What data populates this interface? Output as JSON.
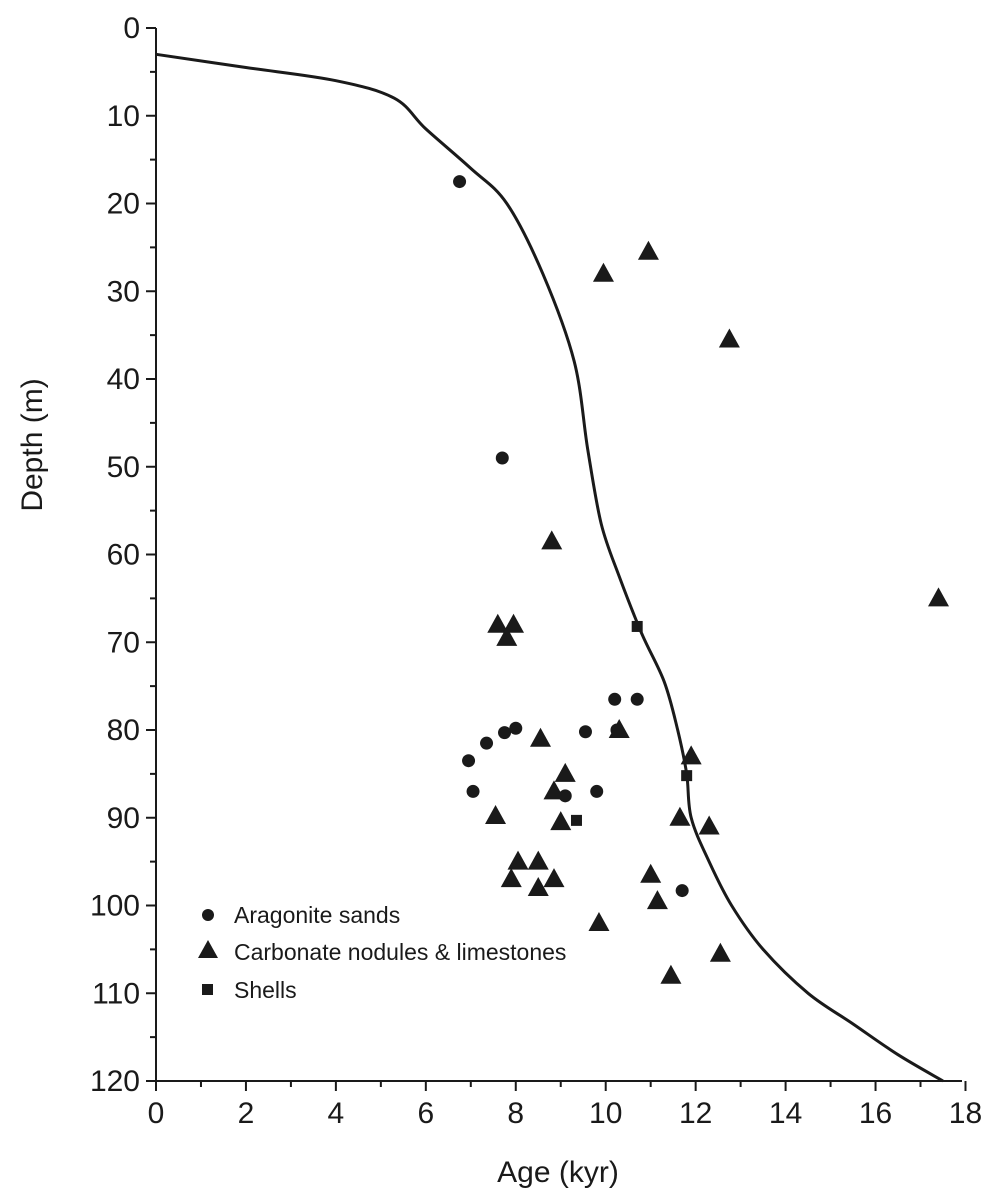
{
  "chart_data": {
    "type": "scatter",
    "title": "",
    "xlabel": "Age (kyr)",
    "ylabel": "Depth (m)",
    "xlim": [
      0,
      17.5
    ],
    "ylim": [
      0,
      120
    ],
    "y_inverted": true,
    "x_major_ticks": [
      0,
      2,
      4,
      6,
      8,
      10,
      12,
      14,
      16,
      18
    ],
    "x_tick_labels": [
      "0",
      "2",
      "4",
      "6",
      "8",
      "10",
      "12",
      "14",
      "16",
      "18"
    ],
    "x_minor_ticks": [
      1,
      3,
      5,
      7,
      9,
      11,
      13,
      15,
      17
    ],
    "y_major_ticks": [
      0,
      10,
      20,
      30,
      40,
      50,
      60,
      70,
      80,
      90,
      100,
      110,
      120
    ],
    "y_tick_labels": [
      "0",
      "10",
      "20",
      "30",
      "40",
      "50",
      "60",
      "70",
      "80",
      "90",
      "100",
      "110",
      "120"
    ],
    "y_minor_ticks": [
      5,
      15,
      25,
      35,
      45,
      55,
      65,
      75,
      85,
      95,
      105,
      115
    ],
    "grid": false,
    "legend_position": "bottom-left",
    "curve": {
      "x": [
        0,
        2,
        4,
        5.3,
        6,
        7,
        7.8,
        8.6,
        9.3,
        9.6,
        9.9,
        10.3,
        10.8,
        11.3,
        11.6,
        11.8,
        11.9,
        12.3,
        12.8,
        13.5,
        14.5,
        15.5,
        16.5,
        17.5
      ],
      "y": [
        3,
        4.5,
        6,
        8,
        11.5,
        16,
        20,
        28,
        38,
        48,
        56.5,
        62.5,
        69,
        74.5,
        80,
        85,
        90,
        95,
        100,
        105,
        110,
        113.5,
        117,
        120
      ]
    },
    "series": [
      {
        "name": "Aragonite sands",
        "marker": "circle",
        "x": [
          6.75,
          7.7,
          6.95,
          7.05,
          7.35,
          7.75,
          8.0,
          9.1,
          9.55,
          9.8,
          10.2,
          10.25,
          10.7,
          11.7
        ],
        "y": [
          17.5,
          49,
          83.5,
          87,
          81.5,
          80.3,
          79.8,
          87.5,
          80.2,
          87,
          76.5,
          80,
          76.5,
          98.3
        ]
      },
      {
        "name": "Carbonate nodules & limestones",
        "marker": "triangle",
        "x": [
          10.95,
          9.95,
          12.75,
          8.8,
          17.4,
          7.6,
          7.95,
          7.8,
          10.3,
          11.9,
          8.55,
          9.1,
          8.85,
          9.0,
          7.55,
          11.65,
          12.3,
          8.05,
          8.5,
          7.9,
          8.85,
          8.5,
          11.0,
          11.15,
          9.85,
          12.55,
          11.45
        ],
        "y": [
          25.5,
          28,
          35.5,
          58.5,
          65,
          68,
          68,
          69.5,
          80,
          83,
          81,
          85,
          87,
          90.5,
          89.8,
          90,
          91,
          95,
          95,
          97,
          97,
          98,
          96.5,
          99.5,
          102,
          105.5,
          108
        ]
      },
      {
        "name": "Shells",
        "marker": "square",
        "x": [
          10.7,
          11.8,
          9.35
        ],
        "y": [
          68.2,
          85.2,
          90.3
        ]
      }
    ]
  }
}
